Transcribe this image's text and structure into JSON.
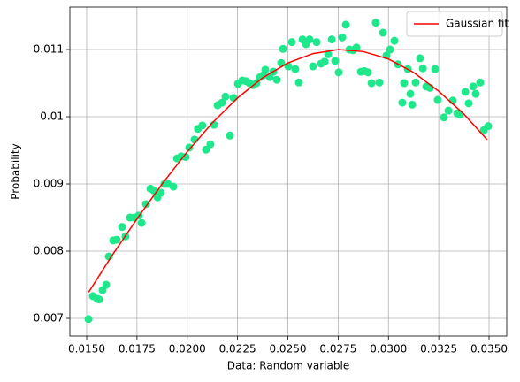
{
  "chart_data": {
    "type": "scatter",
    "xlabel": "Data: Random variable",
    "ylabel": "Probability",
    "xlim": [
      0.014165,
      0.035879
    ],
    "ylim": [
      0.006737,
      0.011632
    ],
    "xticks": [
      {
        "value": 0.015,
        "label": "0.0150"
      },
      0.0175,
      {
        "value": 0.02,
        "label": "0.0200"
      },
      0.0225,
      {
        "value": 0.025,
        "label": "0.0250"
      },
      0.0275,
      {
        "value": 0.03,
        "label": "0.0300"
      },
      0.0325,
      {
        "value": 0.035,
        "label": "0.0350"
      }
    ],
    "yticks": [
      0.007,
      0.008,
      0.009,
      0.01,
      0.011
    ],
    "grid": true,
    "legend": "upper right",
    "series": [
      {
        "type": "scatter",
        "color": "#1fe88c",
        "x": [
          0.01509,
          0.01531,
          0.01553,
          0.01562,
          0.01579,
          0.01597,
          0.0161,
          0.01632,
          0.01649,
          0.01676,
          0.01693,
          0.01715,
          0.01737,
          0.01759,
          0.01773,
          0.01795,
          0.01817,
          0.01834,
          0.01852,
          0.01869,
          0.01887,
          0.01904,
          0.01931,
          0.01949,
          0.0197,
          0.01992,
          0.0201,
          0.02036,
          0.02053,
          0.02075,
          0.02093,
          0.02115,
          0.02133,
          0.02151,
          0.02173,
          0.0219,
          0.02212,
          0.0223,
          0.02252,
          0.02274,
          0.02291,
          0.02309,
          0.02326,
          0.02344,
          0.02362,
          0.02379,
          0.02388,
          0.0241,
          0.02428,
          0.02445,
          0.02467,
          0.02476,
          0.02502,
          0.0252,
          0.02537,
          0.02555,
          0.02573,
          0.0259,
          0.02608,
          0.02625,
          0.02643,
          0.02665,
          0.02683,
          0.027,
          0.02718,
          0.02735,
          0.02753,
          0.0277,
          0.02788,
          0.02806,
          0.02823,
          0.02841,
          0.02863,
          0.0288,
          0.02898,
          0.02916,
          0.02937,
          0.02955,
          0.02973,
          0.0299,
          0.03008,
          0.0303,
          0.03047,
          0.03069,
          0.03078,
          0.03096,
          0.03109,
          0.03118,
          0.03135,
          0.03157,
          0.03171,
          0.03188,
          0.03206,
          0.03232,
          0.03245,
          0.03276,
          0.03298,
          0.0332,
          0.03342,
          0.03355,
          0.03382,
          0.03399,
          0.03421,
          0.03434,
          0.03456,
          0.03474,
          0.03496
        ],
        "values": [
          0.00699,
          0.00733,
          0.00729,
          0.00728,
          0.00742,
          0.0075,
          0.00792,
          0.00816,
          0.00817,
          0.00836,
          0.00822,
          0.0085,
          0.0085,
          0.00853,
          0.00842,
          0.0087,
          0.00893,
          0.0089,
          0.0088,
          0.00887,
          0.009,
          0.009,
          0.00896,
          0.00938,
          0.00941,
          0.0094,
          0.00954,
          0.00966,
          0.00982,
          0.00987,
          0.00951,
          0.00959,
          0.00988,
          0.01017,
          0.01021,
          0.0103,
          0.00972,
          0.01028,
          0.01049,
          0.01054,
          0.01053,
          0.0105,
          0.01047,
          0.0105,
          0.01059,
          0.01062,
          0.0107,
          0.01059,
          0.01067,
          0.01055,
          0.0108,
          0.01101,
          0.01075,
          0.01111,
          0.01071,
          0.01051,
          0.01115,
          0.01108,
          0.01115,
          0.01075,
          0.01111,
          0.01079,
          0.01082,
          0.01093,
          0.01115,
          0.01083,
          0.01066,
          0.01118,
          0.01137,
          0.011,
          0.01099,
          0.01103,
          0.01067,
          0.01068,
          0.01066,
          0.0105,
          0.0114,
          0.01051,
          0.01125,
          0.01091,
          0.011,
          0.01113,
          0.01078,
          0.01021,
          0.0105,
          0.01071,
          0.01034,
          0.01018,
          0.01051,
          0.01087,
          0.01072,
          0.01045,
          0.01043,
          0.01071,
          0.01025,
          0.00999,
          0.01009,
          0.01024,
          0.01005,
          0.01003,
          0.01037,
          0.0102,
          0.01045,
          0.01034,
          0.01051,
          0.0098,
          0.00986
        ]
      },
      {
        "type": "line",
        "name": "Gaussian fit",
        "color": "#ff0000",
        "x": [
          0.0151,
          0.01625,
          0.0175,
          0.01875,
          0.02,
          0.02125,
          0.0225,
          0.02375,
          0.025,
          0.02625,
          0.0275,
          0.02875,
          0.03,
          0.03125,
          0.0325,
          0.03375,
          0.0349
        ],
        "values": [
          0.00739,
          0.00793,
          0.00848,
          0.009,
          0.00948,
          0.00991,
          0.01028,
          0.01058,
          0.0108,
          0.01094,
          0.011,
          0.01097,
          0.01086,
          0.01066,
          0.01038,
          0.01004,
          0.00966
        ]
      }
    ]
  }
}
